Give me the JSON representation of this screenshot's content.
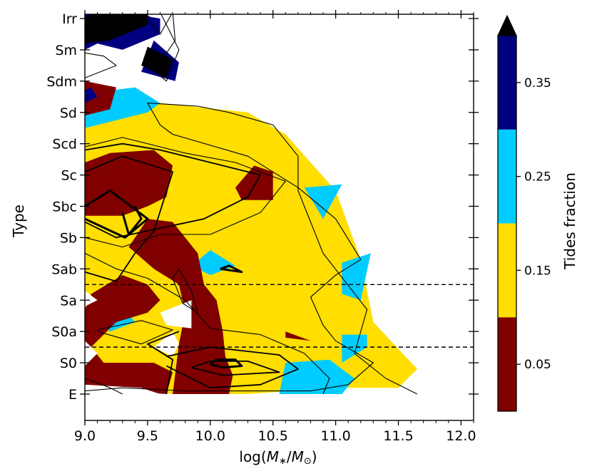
{
  "chart_data": {
    "type": "heatmap",
    "title": "",
    "xlabel": "log(M∗/M⊙)",
    "xlabel_parts": [
      "log(",
      "M",
      "∗",
      "/",
      "M",
      "⊙",
      ")"
    ],
    "ylabel": "Type",
    "xlim": [
      9.0,
      12.1
    ],
    "x_ticks": [
      9.0,
      9.5,
      10.0,
      10.5,
      11.0,
      11.5,
      12.0
    ],
    "x_tick_labels": [
      "9.0",
      "9.5",
      "10.0",
      "10.5",
      "11.0",
      "11.5",
      "12.0"
    ],
    "y_categories": [
      "E",
      "S0",
      "S0a",
      "Sa",
      "Sab",
      "Sb",
      "Sbc",
      "Sc",
      "Scd",
      "Sd",
      "Sdm",
      "Sm",
      "Irr"
    ],
    "grid": false,
    "colorbar": {
      "label": "Tides fraction",
      "ticks": [
        0.05,
        0.15,
        0.25,
        0.35
      ],
      "tick_labels": [
        "0.05",
        "0.15",
        "0.25",
        "0.35"
      ],
      "levels": [
        0.0,
        0.1,
        0.2,
        0.3,
        0.4
      ],
      "colors": [
        "#800000",
        "#ffde00",
        "#00ccff",
        "#000080"
      ],
      "over_color": "#000000",
      "extend": "max"
    },
    "hlines": [
      {
        "y": 3.5,
        "style": "dashed"
      },
      {
        "y": 1.5,
        "style": "dashed"
      }
    ],
    "regions": [
      {
        "level": 0.15,
        "poly": [
          [
            9.0,
            0.3
          ],
          [
            9.7,
            0.0
          ],
          [
            10.3,
            0.0
          ],
          [
            11.0,
            0.2
          ],
          [
            11.5,
            0.2
          ],
          [
            11.65,
            0.8
          ],
          [
            11.3,
            2.3
          ],
          [
            11.2,
            4.3
          ],
          [
            11.0,
            6.5
          ],
          [
            10.6,
            8.3
          ],
          [
            10.3,
            9.0
          ],
          [
            9.6,
            9.3
          ],
          [
            9.4,
            9.8
          ],
          [
            9.0,
            9.6
          ]
        ]
      },
      {
        "level": 0.25,
        "poly": [
          [
            10.55,
            0.0
          ],
          [
            11.05,
            0.0
          ],
          [
            11.15,
            0.5
          ],
          [
            10.95,
            1.1
          ],
          [
            10.6,
            1.0
          ]
        ]
      },
      {
        "level": 0.25,
        "poly": [
          [
            11.05,
            1.0
          ],
          [
            11.25,
            1.5
          ],
          [
            11.25,
            1.9
          ],
          [
            11.05,
            1.9
          ]
        ]
      },
      {
        "level": 0.25,
        "poly": [
          [
            11.2,
            3.0
          ],
          [
            11.28,
            4.5
          ],
          [
            11.05,
            4.2
          ],
          [
            11.05,
            3.2
          ]
        ]
      },
      {
        "level": 0.25,
        "poly": [
          [
            10.9,
            5.6
          ],
          [
            11.05,
            6.7
          ],
          [
            10.75,
            6.6
          ]
        ]
      },
      {
        "level": 0.25,
        "poly": [
          [
            10.0,
            4.6
          ],
          [
            10.2,
            4.1
          ],
          [
            10.0,
            3.8
          ],
          [
            9.85,
            4.1
          ]
        ]
      },
      {
        "level": 0.25,
        "poly": [
          [
            9.0,
            8.5
          ],
          [
            9.3,
            8.8
          ],
          [
            9.5,
            9.0
          ],
          [
            9.6,
            9.3
          ],
          [
            9.4,
            9.8
          ],
          [
            9.0,
            9.6
          ]
        ]
      },
      {
        "level": 0.25,
        "poly": [
          [
            9.2,
            2.0
          ],
          [
            9.4,
            2.3
          ],
          [
            9.3,
            2.8
          ],
          [
            9.1,
            2.4
          ]
        ]
      },
      {
        "level": 0.05,
        "poly": [
          [
            9.0,
            0.2
          ],
          [
            9.65,
            0.0
          ],
          [
            9.7,
            0.7
          ],
          [
            9.55,
            1.0
          ],
          [
            9.15,
            1.0
          ],
          [
            9.05,
            1.5
          ],
          [
            9.25,
            2.3
          ],
          [
            9.5,
            2.6
          ],
          [
            9.6,
            3.0
          ],
          [
            9.5,
            3.5
          ],
          [
            9.3,
            3.8
          ],
          [
            9.05,
            3.2
          ],
          [
            9.0,
            2.7
          ]
        ]
      },
      {
        "level": 0.05,
        "poly": [
          [
            9.7,
            0.0
          ],
          [
            10.15,
            0.0
          ],
          [
            10.18,
            0.6
          ],
          [
            10.12,
            1.2
          ],
          [
            10.1,
            2.0
          ],
          [
            10.05,
            3.0
          ],
          [
            9.95,
            3.5
          ],
          [
            9.9,
            4.5
          ],
          [
            9.7,
            5.5
          ],
          [
            9.5,
            5.6
          ],
          [
            9.35,
            4.7
          ],
          [
            9.55,
            4.0
          ],
          [
            9.75,
            3.5
          ],
          [
            9.8,
            2.6
          ],
          [
            9.75,
            1.6
          ]
        ]
      },
      {
        "level": 0.05,
        "poly": [
          [
            9.0,
            5.7
          ],
          [
            9.3,
            5.7
          ],
          [
            9.5,
            6.0
          ],
          [
            9.65,
            6.3
          ],
          [
            9.7,
            7.3
          ],
          [
            9.55,
            7.8
          ],
          [
            9.2,
            7.7
          ],
          [
            9.0,
            7.4
          ]
        ]
      },
      {
        "level": 0.05,
        "poly": [
          [
            10.25,
            6.2
          ],
          [
            10.5,
            6.2
          ],
          [
            10.5,
            7.1
          ],
          [
            10.35,
            7.3
          ],
          [
            10.2,
            6.6
          ]
        ]
      },
      {
        "level": 0.05,
        "poly": [
          [
            9.0,
            8.9
          ],
          [
            9.2,
            9.1
          ],
          [
            9.25,
            9.8
          ],
          [
            9.0,
            10.0
          ]
        ]
      },
      {
        "level": 0.05,
        "poly": [
          [
            10.6,
            2.0
          ],
          [
            10.8,
            1.7
          ],
          [
            10.6,
            1.8
          ]
        ]
      },
      {
        "level": 0.05,
        "poly": [
          [
            9.5,
            11.5
          ],
          [
            9.55,
            12.0
          ],
          [
            9.5,
            12.1
          ]
        ]
      },
      {
        "level": 0.35,
        "poly": [
          [
            9.0,
            9.3
          ],
          [
            9.1,
            9.5
          ],
          [
            9.05,
            9.8
          ],
          [
            9.0,
            9.7
          ]
        ]
      },
      {
        "level": 0.35,
        "poly": [
          [
            9.0,
            12.4
          ],
          [
            9.6,
            12.0
          ],
          [
            9.6,
            11.5
          ],
          [
            9.3,
            11.0
          ],
          [
            9.1,
            11.2
          ],
          [
            9.0,
            11.0
          ]
        ]
      },
      {
        "level": 0.35,
        "poly": [
          [
            9.55,
            11.3
          ],
          [
            9.75,
            10.6
          ],
          [
            9.72,
            10.0
          ],
          [
            9.45,
            10.3
          ]
        ]
      },
      {
        "level": 0.4,
        "poly": [
          [
            9.0,
            12.0
          ],
          [
            9.0,
            11.2
          ],
          [
            9.2,
            11.3
          ],
          [
            9.5,
            11.8
          ],
          [
            9.5,
            12.7
          ],
          [
            9.15,
            12.6
          ]
        ]
      },
      {
        "level": 0.4,
        "poly": [
          [
            9.5,
            11.1
          ],
          [
            9.7,
            10.7
          ],
          [
            9.65,
            10.1
          ],
          [
            9.45,
            10.5
          ]
        ]
      }
    ],
    "white_patches": [
      [
        [
          9.0,
          0.3
        ],
        [
          9.45,
          0.2
        ],
        [
          9.6,
          0.0
        ],
        [
          9.0,
          0.0
        ]
      ],
      [
        [
          9.0,
          0.9
        ],
        [
          9.1,
          1.3
        ],
        [
          9.0,
          1.7
        ]
      ],
      [
        [
          9.0,
          2.8
        ],
        [
          9.1,
          3.0
        ],
        [
          9.0,
          3.3
        ]
      ],
      [
        [
          9.7,
          1.2
        ],
        [
          9.75,
          1.6
        ],
        [
          9.7,
          2.0
        ],
        [
          9.55,
          1.5
        ]
      ],
      [
        [
          9.65,
          2.2
        ],
        [
          9.85,
          2.1
        ],
        [
          9.85,
          3.0
        ],
        [
          9.6,
          2.6
        ]
      ],
      [
        [
          9.0,
          10.1
        ],
        [
          9.0,
          10.3
        ],
        [
          9.25,
          10.4
        ],
        [
          9.3,
          10.1
        ],
        [
          9.2,
          9.9
        ]
      ]
    ],
    "contours": [
      {
        "weight": "thin",
        "points": [
          [
            9.0,
            0.1
          ],
          [
            9.3,
            0.2
          ],
          [
            9.8,
            0.1
          ],
          [
            10.3,
            0.1
          ],
          [
            10.8,
            0.1
          ],
          [
            11.1,
            0.3
          ],
          [
            11.3,
            1.0
          ],
          [
            11.0,
            1.7
          ],
          [
            10.9,
            2.2
          ],
          [
            10.8,
            3.1
          ],
          [
            11.0,
            3.8
          ],
          [
            11.2,
            4.3
          ],
          [
            11.0,
            5.6
          ],
          [
            10.7,
            6.6
          ],
          [
            10.3,
            7.6
          ],
          [
            9.7,
            8.3
          ],
          [
            9.6,
            8.6
          ],
          [
            9.5,
            9.3
          ],
          [
            9.9,
            9.2
          ],
          [
            10.15,
            9.0
          ],
          [
            10.5,
            8.6
          ],
          [
            10.7,
            7.6
          ],
          [
            10.7,
            6.5
          ],
          [
            10.9,
            4.5
          ],
          [
            11.25,
            2.7
          ],
          [
            11.15,
            1.3
          ],
          [
            11.4,
            0.5
          ],
          [
            11.65,
            0.0
          ]
        ]
      },
      {
        "weight": "thin",
        "points": [
          [
            9.0,
            4.5
          ],
          [
            9.25,
            4.0
          ],
          [
            9.5,
            3.7
          ],
          [
            9.8,
            3.0
          ],
          [
            10.0,
            2.1
          ],
          [
            10.4,
            1.9
          ],
          [
            10.75,
            1.3
          ],
          [
            10.95,
            0.5
          ],
          [
            10.9,
            0.0
          ]
        ]
      },
      {
        "weight": "thin",
        "points": [
          [
            9.0,
            5.0
          ],
          [
            9.3,
            4.7
          ],
          [
            9.6,
            5.1
          ],
          [
            10.0,
            5.1
          ],
          [
            10.4,
            5.8
          ],
          [
            10.6,
            6.8
          ],
          [
            10.2,
            7.4
          ],
          [
            9.8,
            7.7
          ],
          [
            9.3,
            8.2
          ],
          [
            9.0,
            7.9
          ]
        ]
      },
      {
        "weight": "thin",
        "points": [
          [
            9.0,
            0.5
          ],
          [
            9.2,
            0.2
          ],
          [
            9.3,
            0.0
          ]
        ]
      },
      {
        "weight": "thin",
        "points": [
          [
            9.1,
            2.05
          ],
          [
            9.45,
            2.35
          ],
          [
            9.7,
            2.05
          ],
          [
            9.45,
            1.6
          ],
          [
            9.1,
            2.0
          ]
        ]
      },
      {
        "weight": "thin",
        "points": [
          [
            9.75,
            4.0
          ],
          [
            9.85,
            3.3
          ],
          [
            9.9,
            2.6
          ],
          [
            9.78,
            2.9
          ],
          [
            9.7,
            3.7
          ],
          [
            9.75,
            4.0
          ]
        ]
      },
      {
        "weight": "thin",
        "points": [
          [
            9.0,
            10.1
          ],
          [
            9.25,
            10.5
          ],
          [
            9.15,
            10.8
          ],
          [
            9.0,
            10.9
          ]
        ]
      },
      {
        "weight": "thin",
        "points": [
          [
            9.0,
            12.0
          ],
          [
            9.45,
            12.2
          ],
          [
            9.6,
            11.5
          ],
          [
            9.7,
            12.2
          ],
          [
            9.72,
            11.3
          ],
          [
            9.6,
            10.6
          ],
          [
            9.5,
            10.5
          ],
          [
            9.65,
            10.0
          ],
          [
            9.75,
            11.0
          ],
          [
            9.55,
            12.6
          ],
          [
            9.1,
            12.8
          ]
        ]
      },
      {
        "weight": "medium",
        "points": [
          [
            9.0,
            5.5
          ],
          [
            9.25,
            5.0
          ],
          [
            9.6,
            5.3
          ],
          [
            9.95,
            5.6
          ],
          [
            10.3,
            6.3
          ],
          [
            10.4,
            7.0
          ],
          [
            10.0,
            7.4
          ],
          [
            9.6,
            7.8
          ],
          [
            9.3,
            8.0
          ],
          [
            9.0,
            7.8
          ]
        ]
      },
      {
        "weight": "medium",
        "points": [
          [
            9.0,
            3.9
          ],
          [
            9.25,
            3.6
          ],
          [
            9.4,
            4.5
          ],
          [
            9.55,
            5.2
          ],
          [
            9.7,
            7.1
          ],
          [
            9.3,
            7.6
          ],
          [
            9.0,
            7.1
          ]
        ]
      },
      {
        "weight": "medium",
        "points": [
          [
            9.65,
            0.0
          ],
          [
            9.7,
            1.1
          ],
          [
            9.5,
            1.6
          ],
          [
            9.75,
            2.0
          ]
        ]
      },
      {
        "weight": "medium",
        "points": [
          [
            9.65,
            1.2
          ],
          [
            10.0,
            1.5
          ],
          [
            10.55,
            1.25
          ],
          [
            10.7,
            0.8
          ],
          [
            10.4,
            0.3
          ],
          [
            10.0,
            0.2
          ],
          [
            9.65,
            0.9
          ]
        ]
      },
      {
        "weight": "medium",
        "points": [
          [
            9.85,
            0.85
          ],
          [
            10.0,
            1.05
          ],
          [
            10.3,
            1.05
          ],
          [
            10.55,
            0.7
          ],
          [
            10.1,
            0.6
          ],
          [
            9.85,
            0.85
          ]
        ]
      },
      {
        "weight": "thick",
        "points": [
          [
            9.0,
            6.0
          ],
          [
            9.2,
            6.5
          ],
          [
            9.5,
            5.6
          ],
          [
            9.32,
            5.0
          ],
          [
            9.0,
            5.6
          ]
        ]
      },
      {
        "weight": "thick",
        "points": [
          [
            9.3,
            5.8
          ],
          [
            9.35,
            5.1
          ],
          [
            9.45,
            5.6
          ],
          [
            9.4,
            6.0
          ]
        ]
      },
      {
        "weight": "thick",
        "points": [
          [
            10.0,
            0.95
          ],
          [
            10.05,
            1.1
          ],
          [
            10.2,
            1.1
          ],
          [
            10.25,
            0.9
          ],
          [
            10.1,
            0.85
          ],
          [
            10.0,
            0.95
          ]
        ]
      },
      {
        "weight": "thick",
        "points": [
          [
            10.08,
            4.0
          ],
          [
            10.25,
            3.9
          ],
          [
            10.15,
            4.1
          ],
          [
            10.08,
            4.0
          ]
        ]
      }
    ]
  }
}
